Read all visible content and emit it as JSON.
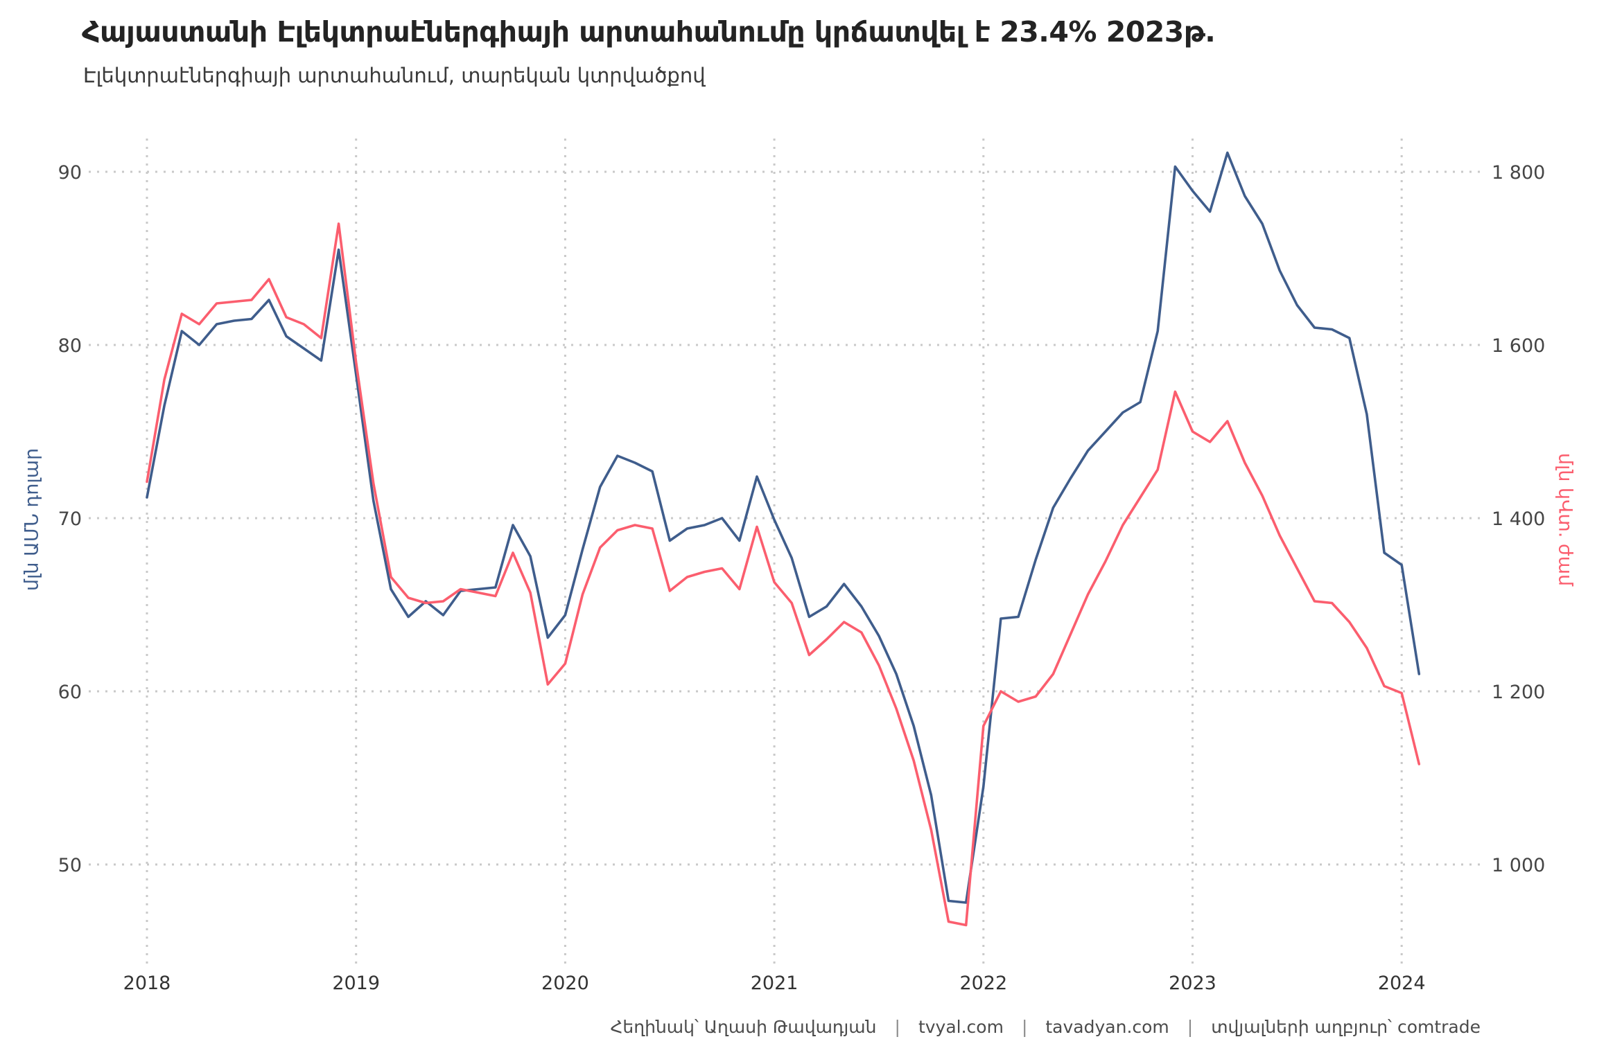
{
  "title": "Հայաստանի Էլեկտրաէներգիայի արտահանումը կրճատվել է 23.4% 2023թ.",
  "subtitle": "Էլեկտրաէներգիայի արտահանում, տարեկան կտրվածքով",
  "footer": {
    "author": "Հեղինակ՝ Աղասի Թավադյան",
    "site1": "tvyal.com",
    "site2": "tavadyan.com",
    "source": "տվյալների աղբյուր՝ comtrade",
    "separator": "|"
  },
  "colors": {
    "usd_line": "#3f5d8c",
    "kwh_line": "#fb5e6e",
    "grid": "#c9c9c9",
    "tick_text": "#454545",
    "x_tick_text": "#333333",
    "title_text": "#232323"
  },
  "chart_data": {
    "type": "line",
    "title": "Հայաստանի Էլեկտրաէներգիայի արտահանումը կրճատվել է 23.4% 2023թ.",
    "subtitle": "Էլեկտրաէներգիայի արտահանում, տարեկան կտրվածքով",
    "frequency": "monthly",
    "start_month": "2018-01",
    "end_month": "2024-02",
    "x_axis": {
      "tick_labels": [
        "2018",
        "2019",
        "2020",
        "2021",
        "2022",
        "2023",
        "2024"
      ]
    },
    "y_axis_left": {
      "label": "մլն ԱՄՆ դոլար",
      "ticks": [
        50,
        60,
        70,
        80,
        90
      ],
      "tick_labels": [
        "50",
        "60",
        "70",
        "80",
        "90"
      ],
      "range": [
        44,
        93
      ]
    },
    "y_axis_right": {
      "label": "մլն կՎտ. ժամ",
      "ticks": [
        1000,
        1200,
        1400,
        1600,
        1800
      ],
      "tick_labels": [
        "1 000",
        "1 200",
        "1 400",
        "1 600",
        "1 800"
      ],
      "scale_factor_vs_left": 20
    },
    "grid": "dotted",
    "legend": "none",
    "series": [
      {
        "name": "մլն ԱՄՆ դոլար",
        "axis": "left",
        "color": "#3f5d8c",
        "values": [
          71.2,
          76.5,
          80.8,
          80.0,
          81.2,
          81.4,
          81.5,
          82.6,
          80.5,
          79.8,
          79.1,
          85.5,
          78.3,
          71.0,
          65.9,
          64.3,
          65.2,
          64.4,
          65.8,
          65.9,
          66.0,
          69.6,
          67.8,
          63.1,
          64.4,
          68.2,
          71.8,
          73.6,
          73.2,
          72.7,
          68.7,
          69.4,
          69.6,
          70.0,
          68.7,
          72.4,
          69.9,
          67.7,
          64.3,
          64.9,
          66.2,
          64.9,
          63.2,
          61.0,
          58.0,
          54.0,
          47.9,
          47.8,
          54.5,
          64.2,
          64.3,
          67.6,
          70.6,
          72.3,
          73.9,
          75.0,
          76.1,
          76.7,
          80.8,
          90.3,
          88.9,
          87.7,
          91.1,
          88.6,
          87.0,
          84.3,
          82.3,
          81.0,
          80.9,
          80.4,
          76.0,
          68.0,
          67.3,
          61.0
        ]
      },
      {
        "name": "մլն կՎտ. ժամ",
        "axis": "right",
        "color": "#fb5e6e",
        "values": [
          1442,
          1560,
          1636,
          1624,
          1648,
          1650,
          1652,
          1676,
          1632,
          1624,
          1608,
          1740,
          1580,
          1440,
          1332,
          1308,
          1302,
          1304,
          1318,
          1314,
          1310,
          1360,
          1314,
          1208,
          1232,
          1312,
          1366,
          1386,
          1392,
          1388,
          1316,
          1332,
          1338,
          1342,
          1318,
          1390,
          1326,
          1302,
          1242,
          1260,
          1280,
          1268,
          1230,
          1180,
          1120,
          1040,
          934,
          930,
          1160,
          1200,
          1188,
          1194,
          1220,
          1266,
          1312,
          1350,
          1392,
          1424,
          1456,
          1546,
          1500,
          1488,
          1512,
          1464,
          1426,
          1380,
          1342,
          1304,
          1302,
          1280,
          1250,
          1206,
          1198,
          1116
        ]
      }
    ]
  }
}
